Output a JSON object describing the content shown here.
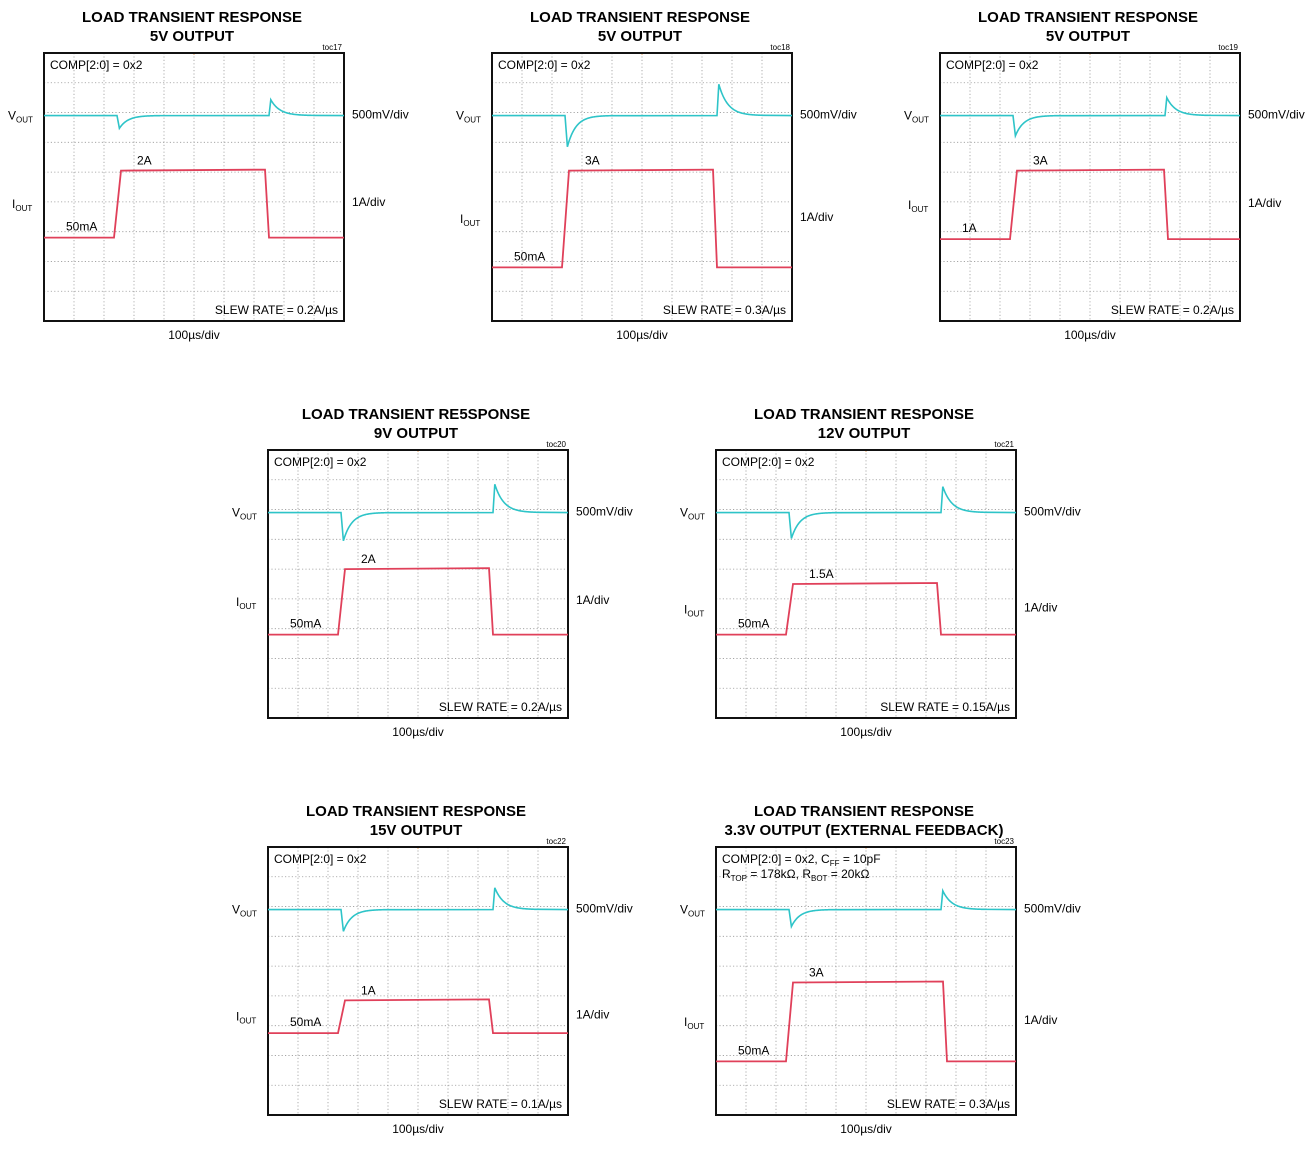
{
  "chart_data": [
    {
      "type": "line",
      "title": "LOAD TRANSIENT RESPONSE",
      "subtitle": "5V OUTPUT",
      "tag": "toc17",
      "note": [
        "COMP[2:0] = 0x2"
      ],
      "vout_label": "V",
      "vout_sub": "OUT",
      "vout_scale": "500mV/div",
      "iout_label": "I",
      "iout_sub": "OUT",
      "iout_scale": "1A/div",
      "time_scale": "100µs/div",
      "slew": "SLEW RATE = 0.2A/µs",
      "low_label": "50mA",
      "high_label": "2A",
      "x_range_us": [
        0,
        1000
      ],
      "grid": true,
      "series": [
        {
          "name": "VOUT",
          "color": "#2ec4c8",
          "baseline_div": 2.1,
          "undershoot_div": 0.43,
          "overshoot_div": 0.53,
          "step_up_us": 250,
          "step_down_us": 750
        },
        {
          "name": "IOUT",
          "color": "#e0405a",
          "low_div": 6.2,
          "high_div": 3.95,
          "step_up_us": 250,
          "step_down_us": 740
        }
      ]
    },
    {
      "type": "line",
      "title": "LOAD TRANSIENT RESPONSE",
      "subtitle": "5V OUTPUT",
      "tag": "toc18",
      "note": [
        "COMP[2:0] = 0x2"
      ],
      "vout_label": "V",
      "vout_sub": "OUT",
      "vout_scale": "500mV/div",
      "iout_label": "I",
      "iout_sub": "OUT",
      "iout_scale": "1A/div",
      "time_scale": "100µs/div",
      "slew": "SLEW RATE = 0.3A/µs",
      "low_label": "50mA",
      "high_label": "3A",
      "x_range_us": [
        0,
        1000
      ],
      "grid": true,
      "series": [
        {
          "name": "VOUT",
          "color": "#2ec4c8",
          "baseline_div": 2.1,
          "undershoot_div": 1.05,
          "overshoot_div": 1.05,
          "step_up_us": 250,
          "step_down_us": 750
        },
        {
          "name": "IOUT",
          "color": "#e0405a",
          "low_div": 7.2,
          "high_div": 3.95,
          "step_up_us": 250,
          "step_down_us": 740
        }
      ]
    },
    {
      "type": "line",
      "title": "LOAD TRANSIENT RESPONSE",
      "subtitle": "5V OUTPUT",
      "tag": "toc19",
      "note": [
        "COMP[2:0] = 0x2"
      ],
      "vout_label": "V",
      "vout_sub": "OUT",
      "vout_scale": "500mV/div",
      "iout_label": "I",
      "iout_sub": "OUT",
      "iout_scale": "1A/div",
      "time_scale": "100µs/div",
      "slew": "SLEW RATE = 0.2A/µs",
      "low_label": "1A",
      "high_label": "3A",
      "x_range_us": [
        0,
        1000
      ],
      "grid": true,
      "series": [
        {
          "name": "VOUT",
          "color": "#2ec4c8",
          "baseline_div": 2.1,
          "undershoot_div": 0.68,
          "overshoot_div": 0.6,
          "step_up_us": 250,
          "step_down_us": 750
        },
        {
          "name": "IOUT",
          "color": "#e0405a",
          "low_div": 6.25,
          "high_div": 3.95,
          "step_up_us": 250,
          "step_down_us": 750
        }
      ]
    },
    {
      "type": "line",
      "title": "LOAD TRANSIENT RE5SPONSE",
      "subtitle": "9V OUTPUT",
      "tag": "toc20",
      "note": [
        "COMP[2:0] = 0x2"
      ],
      "vout_label": "V",
      "vout_sub": "OUT",
      "vout_scale": "500mV/div",
      "iout_label": "I",
      "iout_sub": "OUT",
      "iout_scale": "1A/div",
      "time_scale": "100µs/div",
      "slew": "SLEW RATE = 0.2A/µs",
      "low_label": "50mA",
      "high_label": "2A",
      "x_range_us": [
        0,
        1000
      ],
      "grid": true,
      "series": [
        {
          "name": "VOUT",
          "color": "#2ec4c8",
          "baseline_div": 2.1,
          "undershoot_div": 0.95,
          "overshoot_div": 0.95,
          "step_up_us": 250,
          "step_down_us": 750
        },
        {
          "name": "IOUT",
          "color": "#e0405a",
          "low_div": 6.2,
          "high_div": 4.0,
          "step_up_us": 250,
          "step_down_us": 740
        }
      ]
    },
    {
      "type": "line",
      "title": "LOAD TRANSIENT RESPONSE",
      "subtitle": "12V OUTPUT",
      "tag": "toc21",
      "note": [
        "COMP[2:0] = 0x2"
      ],
      "vout_label": "V",
      "vout_sub": "OUT",
      "vout_scale": "500mV/div",
      "iout_label": "I",
      "iout_sub": "OUT",
      "iout_scale": "1A/div",
      "time_scale": "100µs/div",
      "slew": "SLEW RATE = 0.15A/µs",
      "low_label": "50mA",
      "high_label": "1.5A",
      "x_range_us": [
        0,
        1000
      ],
      "grid": true,
      "series": [
        {
          "name": "VOUT",
          "color": "#2ec4c8",
          "baseline_div": 2.1,
          "undershoot_div": 0.87,
          "overshoot_div": 0.87,
          "step_up_us": 250,
          "step_down_us": 750
        },
        {
          "name": "IOUT",
          "color": "#e0405a",
          "low_div": 6.2,
          "high_div": 4.5,
          "step_up_us": 250,
          "step_down_us": 740
        }
      ]
    },
    {
      "type": "line",
      "title": "LOAD TRANSIENT RESPONSE",
      "subtitle": "15V OUTPUT",
      "tag": "toc22",
      "note": [
        "COMP[2:0] = 0x2"
      ],
      "vout_label": "V",
      "vout_sub": "OUT",
      "vout_scale": "500mV/div",
      "iout_label": "I",
      "iout_sub": "OUT",
      "iout_scale": "1A/div",
      "time_scale": "100µs/div",
      "slew": "SLEW RATE = 0.1A/µs",
      "low_label": "50mA",
      "high_label": "1A",
      "x_range_us": [
        0,
        1000
      ],
      "grid": true,
      "series": [
        {
          "name": "VOUT",
          "color": "#2ec4c8",
          "baseline_div": 2.1,
          "undershoot_div": 0.73,
          "overshoot_div": 0.73,
          "step_up_us": 250,
          "step_down_us": 750
        },
        {
          "name": "IOUT",
          "color": "#e0405a",
          "low_div": 6.25,
          "high_div": 5.15,
          "step_up_us": 250,
          "step_down_us": 740
        }
      ]
    },
    {
      "type": "line",
      "title": "LOAD TRANSIENT RESPONSE",
      "subtitle": "3.3V OUTPUT (EXTERNAL FEEDBACK)",
      "tag": "toc23",
      "note": [
        "COMP[2:0] = 0x2, C",
        "R"
      ],
      "note_rich": true,
      "vout_label": "V",
      "vout_sub": "OUT",
      "vout_scale": "500mV/div",
      "iout_label": "I",
      "iout_sub": "OUT",
      "iout_scale": "1A/div",
      "time_scale": "100µs/div",
      "slew": "SLEW RATE = 0.3A/µs",
      "low_label": "50mA",
      "high_label": "3A",
      "x_range_us": [
        0,
        1000
      ],
      "grid": true,
      "series": [
        {
          "name": "VOUT",
          "color": "#2ec4c8",
          "baseline_div": 2.1,
          "undershoot_div": 0.57,
          "overshoot_div": 0.63,
          "step_up_us": 250,
          "step_down_us": 750
        },
        {
          "name": "IOUT",
          "color": "#e0405a",
          "low_div": 7.2,
          "high_div": 4.55,
          "step_up_us": 250,
          "step_down_us": 760
        }
      ]
    }
  ],
  "toc23_note": {
    "line1_pre": "COMP[2:0] = 0x2, C",
    "line1_sub": "FF",
    "line1_post": " = 10pF",
    "line2_a": "R",
    "line2_a_sub": "TOP",
    "line2_mid": " = 178kΩ, R",
    "line2_b_sub": "BOT",
    "line2_post": " = 20kΩ"
  }
}
